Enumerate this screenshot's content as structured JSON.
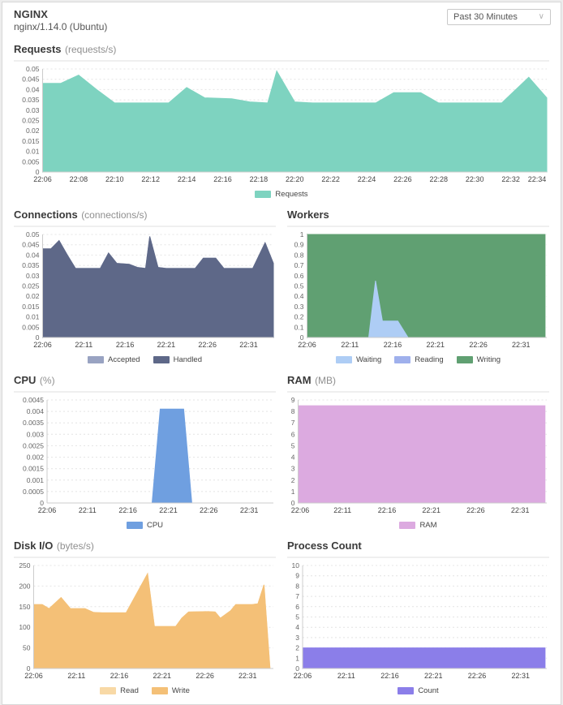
{
  "header": {
    "title": "NGINX",
    "subtitle": "nginx/1.14.0 (Ubuntu)",
    "time_range": {
      "selected": "Past 30 Minutes"
    }
  },
  "chart_data": [
    {
      "id": "requests",
      "type": "area",
      "title": "Requests",
      "unit": "(requests/s)",
      "xlabel": "",
      "ylabel": "",
      "ylim": [
        0,
        0.05
      ],
      "grid": true,
      "legend_position": "bottom-center",
      "domain": [
        0,
        28
      ],
      "x_start": "22:06",
      "x_end": "22:34",
      "ytick_labels": [
        "0.05",
        "0.045",
        "0.04",
        "0.035",
        "0.03",
        "0.025",
        "0.02",
        "0.015",
        "0.01",
        "0.005",
        "0"
      ],
      "xticks": [
        {
          "t": 0,
          "label": "22:06"
        },
        {
          "t": 2,
          "label": "22:08"
        },
        {
          "t": 4,
          "label": "22:10"
        },
        {
          "t": 6,
          "label": "22:12"
        },
        {
          "t": 8,
          "label": "22:14"
        },
        {
          "t": 10,
          "label": "22:16"
        },
        {
          "t": 12,
          "label": "22:18"
        },
        {
          "t": 14,
          "label": "22:20"
        },
        {
          "t": 16,
          "label": "22:22"
        },
        {
          "t": 18,
          "label": "22:24"
        },
        {
          "t": 20,
          "label": "22:26"
        },
        {
          "t": 22,
          "label": "22:28"
        },
        {
          "t": 24,
          "label": "22:30"
        },
        {
          "t": 26,
          "label": "22:32"
        },
        {
          "t": 28,
          "label": "22:34"
        }
      ],
      "series": [
        {
          "name": "Requests",
          "color": "#7ed3c0",
          "points": [
            [
              0,
              0.043
            ],
            [
              1,
              0.043
            ],
            [
              2,
              0.047
            ],
            [
              3,
              0.04
            ],
            [
              4,
              0.0335
            ],
            [
              7,
              0.0335
            ],
            [
              8,
              0.041
            ],
            [
              9,
              0.036
            ],
            [
              10.5,
              0.0355
            ],
            [
              11.5,
              0.034
            ],
            [
              12.5,
              0.0335
            ],
            [
              13,
              0.049
            ],
            [
              14,
              0.034
            ],
            [
              15,
              0.0335
            ],
            [
              18.5,
              0.0335
            ],
            [
              19.5,
              0.0385
            ],
            [
              21,
              0.0385
            ],
            [
              22,
              0.0335
            ],
            [
              25.5,
              0.0335
            ],
            [
              27,
              0.046
            ],
            [
              28,
              0.036
            ]
          ]
        }
      ],
      "legend": [
        {
          "label": "Requests",
          "color": "#7ed3c0"
        }
      ]
    },
    {
      "id": "connections",
      "type": "area",
      "title": "Connections",
      "unit": "(connections/s)",
      "ylim": [
        0,
        0.05
      ],
      "grid": true,
      "legend_position": "bottom-center",
      "domain": [
        0,
        28
      ],
      "x_start": "22:06",
      "x_end": "22:33",
      "ytick_labels": [
        "0.05",
        "0.045",
        "0.04",
        "0.035",
        "0.03",
        "0.025",
        "0.02",
        "0.015",
        "0.01",
        "0.005",
        "0"
      ],
      "xticks": [
        {
          "t": 0,
          "label": "22:06"
        },
        {
          "t": 5,
          "label": "22:11"
        },
        {
          "t": 10,
          "label": "22:16"
        },
        {
          "t": 15,
          "label": "22:21"
        },
        {
          "t": 20,
          "label": "22:26"
        },
        {
          "t": 25,
          "label": "22:31"
        }
      ],
      "series": [
        {
          "name": "Accepted",
          "color": "#99a3c2",
          "points": [
            [
              0,
              0.043
            ],
            [
              1,
              0.043
            ],
            [
              2,
              0.047
            ],
            [
              3,
              0.04
            ],
            [
              4,
              0.0335
            ],
            [
              7,
              0.0335
            ],
            [
              8,
              0.041
            ],
            [
              9,
              0.036
            ],
            [
              10.5,
              0.0355
            ],
            [
              11.5,
              0.034
            ],
            [
              12.5,
              0.0335
            ],
            [
              13,
              0.049
            ],
            [
              14,
              0.034
            ],
            [
              15,
              0.0335
            ],
            [
              18.5,
              0.0335
            ],
            [
              19.5,
              0.0385
            ],
            [
              21,
              0.0385
            ],
            [
              22,
              0.0335
            ],
            [
              25.5,
              0.0335
            ],
            [
              27,
              0.046
            ],
            [
              28,
              0.036
            ]
          ]
        },
        {
          "name": "Handled",
          "color": "#5e6888",
          "points": [
            [
              0,
              0.043
            ],
            [
              1,
              0.043
            ],
            [
              2,
              0.047
            ],
            [
              3,
              0.04
            ],
            [
              4,
              0.0335
            ],
            [
              7,
              0.0335
            ],
            [
              8,
              0.041
            ],
            [
              9,
              0.036
            ],
            [
              10.5,
              0.0355
            ],
            [
              11.5,
              0.034
            ],
            [
              12.5,
              0.0335
            ],
            [
              13,
              0.049
            ],
            [
              14,
              0.034
            ],
            [
              15,
              0.0335
            ],
            [
              18.5,
              0.0335
            ],
            [
              19.5,
              0.0385
            ],
            [
              21,
              0.0385
            ],
            [
              22,
              0.0335
            ],
            [
              25.5,
              0.0335
            ],
            [
              27,
              0.046
            ],
            [
              28,
              0.036
            ]
          ]
        }
      ],
      "legend": [
        {
          "label": "Accepted",
          "color": "#99a3c2"
        },
        {
          "label": "Handled",
          "color": "#5e6888"
        }
      ]
    },
    {
      "id": "workers",
      "type": "area",
      "title": "Workers",
      "unit": "",
      "ylim": [
        0,
        1
      ],
      "grid": true,
      "legend_position": "bottom-center",
      "domain": [
        0,
        28
      ],
      "x_start": "22:06",
      "x_end": "22:33",
      "ytick_labels": [
        "1",
        "0.9",
        "0.8",
        "0.7",
        "0.6",
        "0.5",
        "0.4",
        "0.3",
        "0.2",
        "0.1",
        "0"
      ],
      "xticks": [
        {
          "t": 0,
          "label": "22:06"
        },
        {
          "t": 5,
          "label": "22:11"
        },
        {
          "t": 10,
          "label": "22:16"
        },
        {
          "t": 15,
          "label": "22:21"
        },
        {
          "t": 20,
          "label": "22:26"
        },
        {
          "t": 25,
          "label": "22:31"
        }
      ],
      "series": [
        {
          "name": "Writing",
          "color": "#60a072",
          "points": [
            [
              0,
              1
            ],
            [
              27.8,
              1
            ]
          ]
        },
        {
          "name": "Reading",
          "color": "#9fb0ec",
          "points": [
            [
              0,
              0
            ],
            [
              27.8,
              0
            ]
          ]
        },
        {
          "name": "Waiting",
          "color": "#aecdf5",
          "points": [
            [
              0,
              0
            ],
            [
              7.2,
              0
            ],
            [
              8,
              0.55
            ],
            [
              8.8,
              0.16
            ],
            [
              10.6,
              0.16
            ],
            [
              11.8,
              0
            ],
            [
              27.8,
              0
            ]
          ]
        }
      ],
      "legend": [
        {
          "label": "Waiting",
          "color": "#aecdf5"
        },
        {
          "label": "Reading",
          "color": "#9fb0ec"
        },
        {
          "label": "Writing",
          "color": "#60a072"
        }
      ]
    },
    {
      "id": "cpu",
      "type": "area",
      "title": "CPU",
      "unit": "(%)",
      "ylim": [
        0,
        0.0045
      ],
      "grid": true,
      "legend_position": "bottom-center",
      "domain": [
        0,
        28
      ],
      "x_start": "22:06",
      "x_end": "22:33",
      "ytick_labels": [
        "0.0045",
        "0.004",
        "0.0035",
        "0.003",
        "0.0025",
        "0.002",
        "0.0015",
        "0.001",
        "0.0005",
        "0"
      ],
      "xticks": [
        {
          "t": 0,
          "label": "22:06"
        },
        {
          "t": 5,
          "label": "22:11"
        },
        {
          "t": 10,
          "label": "22:16"
        },
        {
          "t": 15,
          "label": "22:21"
        },
        {
          "t": 20,
          "label": "22:26"
        },
        {
          "t": 25,
          "label": "22:31"
        }
      ],
      "series": [
        {
          "name": "CPU",
          "color": "#6f9fe0",
          "points": [
            [
              0,
              0
            ],
            [
              13,
              0
            ],
            [
              14,
              0.0041
            ],
            [
              16.9,
              0.0041
            ],
            [
              17.9,
              0
            ],
            [
              27.8,
              0
            ]
          ]
        }
      ],
      "legend": [
        {
          "label": "CPU",
          "color": "#6f9fe0"
        }
      ]
    },
    {
      "id": "ram",
      "type": "area",
      "title": "RAM",
      "unit": "(MB)",
      "ylim": [
        0,
        9
      ],
      "grid": true,
      "legend_position": "bottom-center",
      "domain": [
        0,
        28
      ],
      "x_start": "22:06",
      "x_end": "22:33",
      "ytick_labels": [
        "9",
        "8",
        "7",
        "6",
        "5",
        "4",
        "3",
        "2",
        "1",
        "0"
      ],
      "xticks": [
        {
          "t": 0,
          "label": "22:06"
        },
        {
          "t": 5,
          "label": "22:11"
        },
        {
          "t": 10,
          "label": "22:16"
        },
        {
          "t": 15,
          "label": "22:21"
        },
        {
          "t": 20,
          "label": "22:26"
        },
        {
          "t": 25,
          "label": "22:31"
        }
      ],
      "series": [
        {
          "name": "RAM",
          "color": "#dcaae0",
          "points": [
            [
              0,
              8.5
            ],
            [
              27.8,
              8.5
            ]
          ]
        }
      ],
      "legend": [
        {
          "label": "RAM",
          "color": "#dcaae0"
        }
      ]
    },
    {
      "id": "disk-io",
      "type": "area",
      "title": "Disk I/O",
      "unit": "(bytes/s)",
      "ylim": [
        0,
        250
      ],
      "grid": true,
      "legend_position": "bottom-center",
      "domain": [
        0,
        28
      ],
      "x_start": "22:06",
      "x_end": "22:33",
      "ytick_labels": [
        "250",
        "200",
        "150",
        "100",
        "50",
        "0"
      ],
      "xticks": [
        {
          "t": 0,
          "label": "22:06"
        },
        {
          "t": 5,
          "label": "22:11"
        },
        {
          "t": 10,
          "label": "22:16"
        },
        {
          "t": 15,
          "label": "22:21"
        },
        {
          "t": 20,
          "label": "22:26"
        },
        {
          "t": 25,
          "label": "22:31"
        }
      ],
      "series": [
        {
          "name": "Read",
          "color": "#f8d9a6",
          "points": [
            [
              0,
              155
            ],
            [
              1,
              155
            ],
            [
              1.8,
              145
            ],
            [
              3.2,
              172
            ],
            [
              4.3,
              145
            ],
            [
              6,
              145
            ],
            [
              7,
              136
            ],
            [
              8,
              135
            ],
            [
              10.8,
              135
            ],
            [
              13.3,
              230
            ],
            [
              14.1,
              102
            ],
            [
              16.6,
              102
            ],
            [
              17.3,
              122
            ],
            [
              18.1,
              137
            ],
            [
              20.4,
              138
            ],
            [
              21.2,
              137
            ],
            [
              21.8,
              122
            ],
            [
              23,
              140
            ],
            [
              23.6,
              155
            ],
            [
              25.5,
              155
            ],
            [
              26.2,
              157
            ],
            [
              26.9,
              203
            ],
            [
              27.6,
              0
            ]
          ]
        },
        {
          "name": "Write",
          "color": "#f4c077",
          "points": [
            [
              0,
              155
            ],
            [
              1,
              155
            ],
            [
              1.8,
              145
            ],
            [
              3.2,
              172
            ],
            [
              4.3,
              145
            ],
            [
              6,
              145
            ],
            [
              7,
              136
            ],
            [
              8,
              135
            ],
            [
              10.8,
              135
            ],
            [
              13.3,
              230
            ],
            [
              14.1,
              102
            ],
            [
              16.6,
              102
            ],
            [
              17.3,
              122
            ],
            [
              18.1,
              137
            ],
            [
              20.4,
              138
            ],
            [
              21.2,
              137
            ],
            [
              21.8,
              122
            ],
            [
              23,
              140
            ],
            [
              23.6,
              155
            ],
            [
              25.5,
              155
            ],
            [
              26.2,
              157
            ],
            [
              26.9,
              203
            ],
            [
              27.6,
              0
            ]
          ]
        }
      ],
      "legend": [
        {
          "label": "Read",
          "color": "#f8d9a6"
        },
        {
          "label": "Write",
          "color": "#f4c077"
        }
      ]
    },
    {
      "id": "process-count",
      "type": "area",
      "title": "Process Count",
      "unit": "",
      "ylim": [
        0,
        10
      ],
      "grid": true,
      "legend_position": "bottom-center",
      "domain": [
        0,
        28
      ],
      "x_start": "22:06",
      "x_end": "22:33",
      "ytick_labels": [
        "10",
        "9",
        "8",
        "7",
        "6",
        "5",
        "4",
        "3",
        "2",
        "1",
        "0"
      ],
      "xticks": [
        {
          "t": 0,
          "label": "22:06"
        },
        {
          "t": 5,
          "label": "22:11"
        },
        {
          "t": 10,
          "label": "22:16"
        },
        {
          "t": 15,
          "label": "22:21"
        },
        {
          "t": 20,
          "label": "22:26"
        },
        {
          "t": 25,
          "label": "22:31"
        }
      ],
      "series": [
        {
          "name": "Count",
          "color": "#8b7ee9",
          "points": [
            [
              0,
              2
            ],
            [
              27.8,
              2
            ]
          ]
        }
      ],
      "legend": [
        {
          "label": "Count",
          "color": "#8b7ee9"
        }
      ]
    }
  ]
}
